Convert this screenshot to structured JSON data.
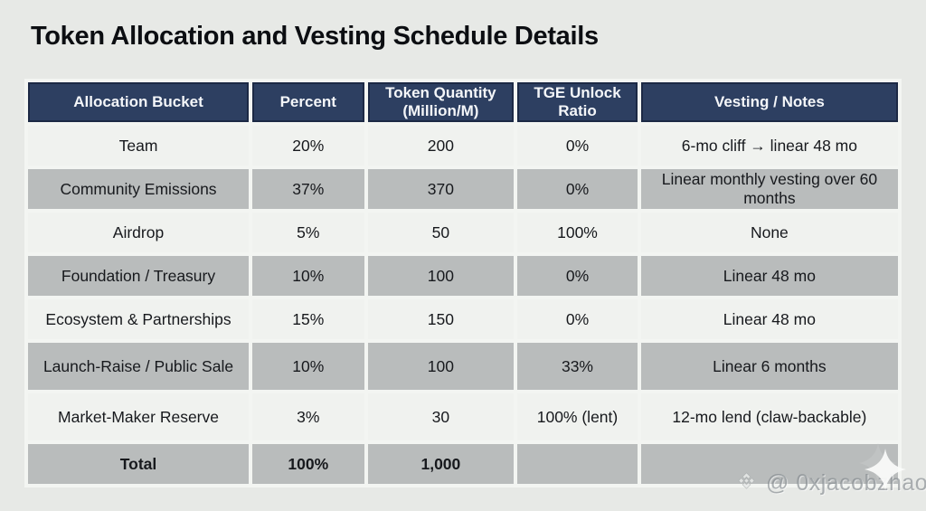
{
  "page": {
    "title": "Token Allocation and Vesting Schedule Details"
  },
  "table": {
    "columns": [
      "Allocation Bucket",
      "Percent",
      "Token Quantity\n(Million/M)",
      "TGE Unlock\nRatio",
      "Vesting / Notes"
    ],
    "rows": [
      {
        "bucket": "Team",
        "percent": "20%",
        "quantity": "200",
        "tge": "0%",
        "vesting": "6-mo cliff → linear 48 mo",
        "shade": "light"
      },
      {
        "bucket": "Community Emissions",
        "percent": "37%",
        "quantity": "370",
        "tge": "0%",
        "vesting": "Linear monthly vesting over 60 months",
        "shade": "gray"
      },
      {
        "bucket": "Airdrop",
        "percent": "5%",
        "quantity": "50",
        "tge": "100%",
        "vesting": "None",
        "shade": "light"
      },
      {
        "bucket": "Foundation / Treasury",
        "percent": "10%",
        "quantity": "100",
        "tge": "0%",
        "vesting": "Linear 48 mo",
        "shade": "gray"
      },
      {
        "bucket": "Ecosystem & Partnerships",
        "percent": "15%",
        "quantity": "150",
        "tge": "0%",
        "vesting": "Linear 48 mo",
        "shade": "light"
      },
      {
        "bucket": "Launch-Raise / Public Sale",
        "percent": "10%",
        "quantity": "100",
        "tge": "33%",
        "vesting": "Linear 6 months",
        "shade": "gray",
        "tall": true
      },
      {
        "bucket": "Market-Maker Reserve",
        "percent": "3%",
        "quantity": "30",
        "tge": "100% (lent)",
        "vesting": "12-mo lend (claw-backable)",
        "shade": "light",
        "tall": true
      },
      {
        "bucket": "Total",
        "percent": "100%",
        "quantity": "1,000",
        "tge": "",
        "vesting": "",
        "shade": "gray",
        "total": true
      }
    ]
  },
  "watermark": {
    "handle": "@ 0xjacobzhao",
    "logo_icon": "binance-diamond-icon",
    "decoration_icon": "sparkle-icon"
  },
  "colors": {
    "page_background": "#e7e9e6",
    "header_background": "#2d3f61",
    "header_border": "#1c2945",
    "header_text": "#f4f6f9",
    "row_light": "#f0f2ef",
    "row_gray": "#b9bcbc",
    "cell_gap": "#f3f5f2",
    "title_text": "#0c0e12"
  }
}
